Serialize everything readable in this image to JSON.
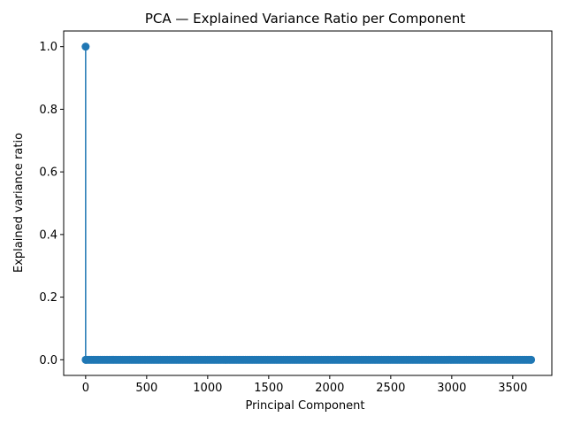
{
  "chart_data": {
    "type": "stem",
    "title": "PCA — Explained Variance Ratio per Component",
    "xlabel": "Principal Component",
    "ylabel": "Explained variance ratio",
    "xlim": [
      -180,
      3820
    ],
    "ylim": [
      -0.05,
      1.05
    ],
    "x_ticks": [
      0,
      500,
      1000,
      1500,
      2000,
      2500,
      3000,
      3500
    ],
    "y_ticks": [
      0.0,
      0.2,
      0.4,
      0.6,
      0.8,
      1.0
    ],
    "x_tick_labels": [
      "0",
      "500",
      "1000",
      "1500",
      "2000",
      "2500",
      "3000",
      "3500"
    ],
    "y_tick_labels": [
      "0.0",
      "0.2",
      "0.4",
      "0.6",
      "0.8",
      "1.0"
    ],
    "color": "#1f77b4",
    "grid": false,
    "series": [
      {
        "points": [
          {
            "x": 0,
            "y": 1.0
          },
          {
            "x": 1,
            "y": 0.0
          },
          {
            "x": 3650,
            "y": 0.0
          }
        ],
        "baseline_value": 0.0,
        "marker_range": {
          "from": 1,
          "to": 3650,
          "step": 12,
          "value": 0.0
        }
      }
    ]
  }
}
